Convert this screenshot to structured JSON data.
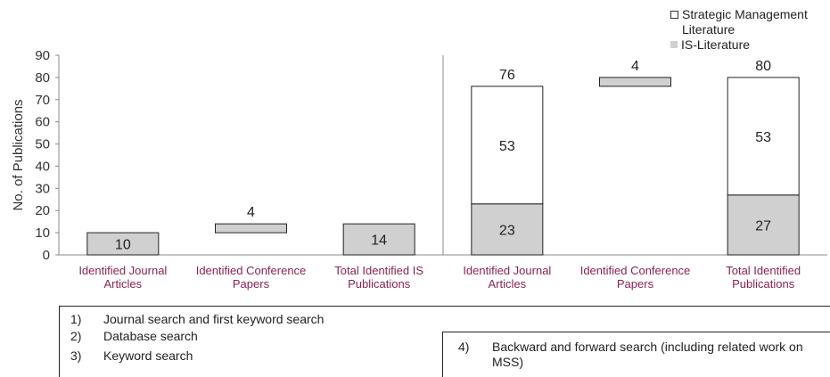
{
  "chart_data": {
    "type": "bar",
    "ylabel": "No. of Publications",
    "ylim": [
      0,
      90
    ],
    "yticks": [
      "0",
      "10",
      "20",
      "30",
      "40",
      "50",
      "60",
      "70",
      "80",
      "90"
    ],
    "categories": [
      "Identified Journal Articles",
      "Identified Conference Papers",
      "Total Identified IS Publications",
      "Identified Journal Articles",
      "Identified Conference Papers",
      "Total Identified Publications"
    ],
    "category_lines": [
      [
        "Identified Journal",
        "Articles"
      ],
      [
        "Identified Conference",
        "Papers"
      ],
      [
        "Total Identified IS",
        "Publications"
      ],
      [
        "Identified Journal",
        "Articles"
      ],
      [
        "Identified Conference",
        "Papers"
      ],
      [
        "Total Identified",
        "Publications"
      ]
    ],
    "bars": [
      {
        "is": 10,
        "sm": 0,
        "is_label": "10",
        "sm_label": "",
        "total_label": ""
      },
      {
        "is": 4,
        "sm": 0,
        "base": 10,
        "is_label": "",
        "sm_label": "",
        "total_label": "4"
      },
      {
        "is": 14,
        "sm": 0,
        "is_label": "14",
        "sm_label": "",
        "total_label": ""
      },
      {
        "is": 23,
        "sm": 53,
        "is_label": "23",
        "sm_label": "53",
        "total_label": "76"
      },
      {
        "is": 4,
        "sm": 0,
        "base": 76,
        "is_label": "",
        "sm_label": "",
        "total_label": "4"
      },
      {
        "is": 27,
        "sm": 53,
        "is_label": "27",
        "sm_label": "53",
        "total_label": "80"
      }
    ],
    "series": [
      {
        "name": "Strategic Management Literature",
        "color": "#ffffff"
      },
      {
        "name": "IS-Literature",
        "color": "#d0d0d0"
      }
    ],
    "legend_position": "top-right",
    "grid": false
  },
  "legend": {
    "sm_line1": "Strategic Management",
    "sm_line2": "Literature",
    "is": "IS-Literature"
  },
  "steps": [
    {
      "num": "1)",
      "text": "Journal search and first keyword search"
    },
    {
      "num": "2)",
      "text": "Database search"
    },
    {
      "num": "3)",
      "text": "Keyword search"
    },
    {
      "num": "4)",
      "text": "Backward and forward search (including related work on MSS)"
    }
  ],
  "colors": {
    "category_label": "#8b2252",
    "is_fill": "#d0d0d0",
    "sm_fill": "#ffffff",
    "outline": "#222222"
  }
}
